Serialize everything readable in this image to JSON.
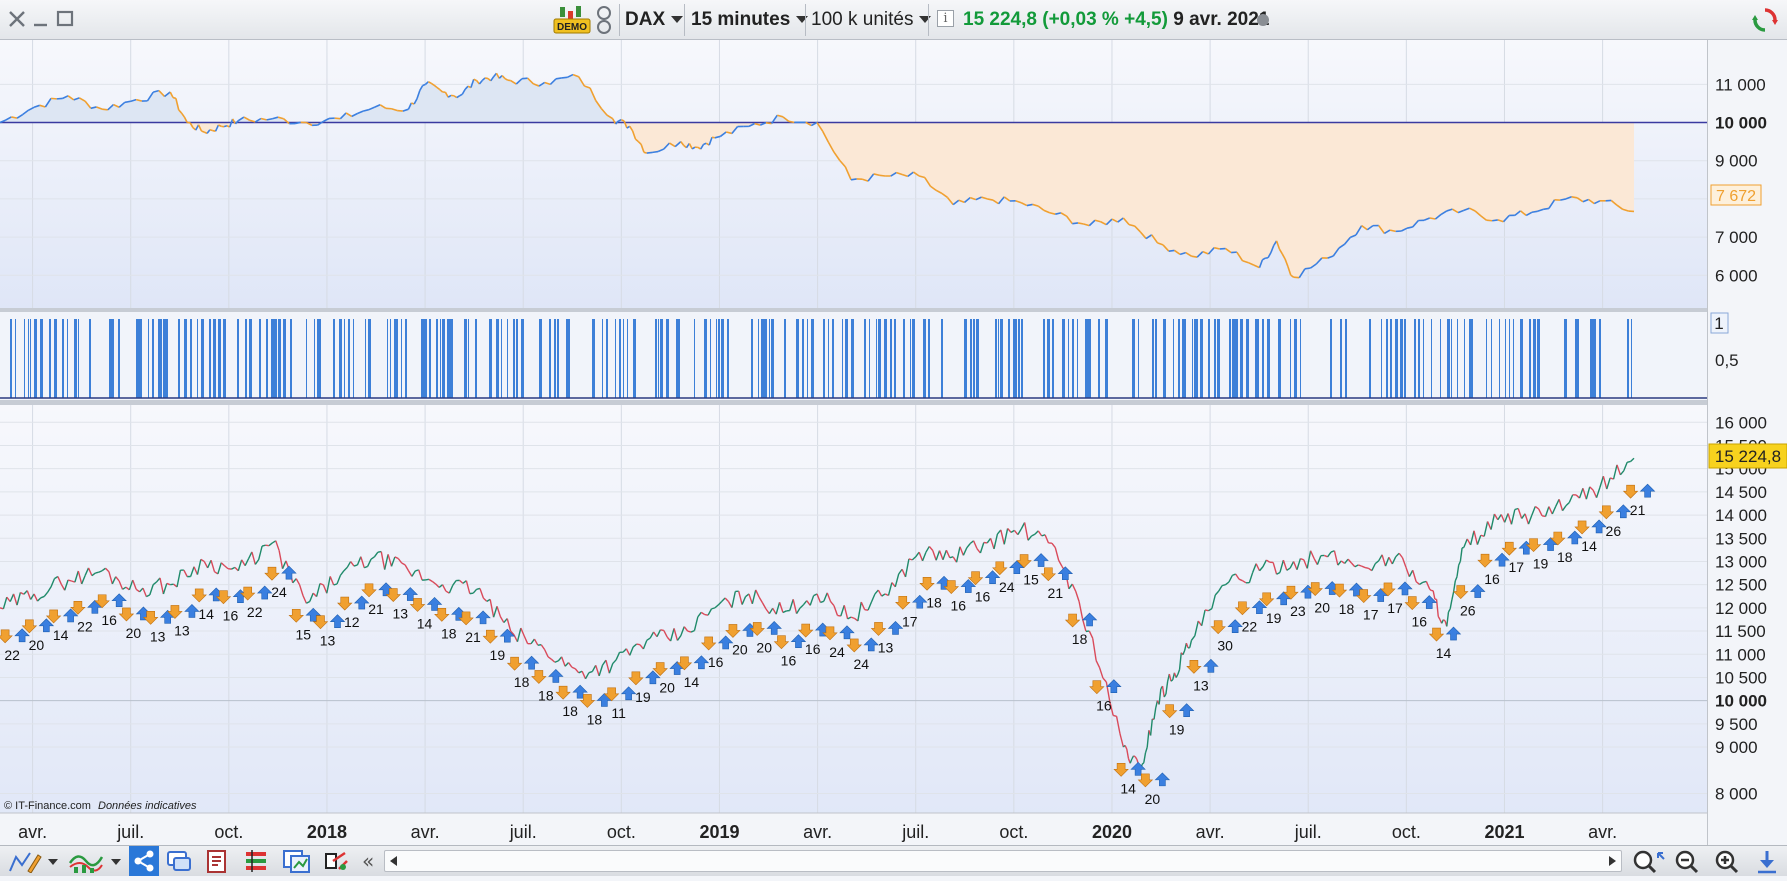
{
  "window": {
    "close_icon": "close-icon",
    "minimize_icon": "minimize-icon",
    "maximize_icon": "maximize-icon"
  },
  "toolbar": {
    "demo_badge": "DEMO",
    "instrument": "DAX",
    "timeframe": "15 minutes",
    "units": "100 k unités",
    "info_icon": "info-icon",
    "quote": "15 224,8 (+0,03 % +4,5)",
    "date": "9 avr. 2021",
    "refresh_icon": "refresh-icon"
  },
  "chart_data": [
    {
      "type": "line",
      "panel": "relative-performance",
      "y_ticks": [
        "11 000",
        "10 000",
        "9 000",
        "8 000",
        "7 000",
        "6 000"
      ],
      "ylim": [
        5300,
        11900
      ],
      "reference_level": 10000,
      "reference_label": "10 000",
      "last_value_label": "7 672",
      "fill_above": "#dde6f3",
      "fill_below": "#fbe8d6",
      "line_up_color": "#3b7fe0",
      "line_down_color": "#f0a030",
      "x": [
        0,
        2,
        4,
        6,
        8,
        10,
        11,
        12,
        13,
        14,
        16,
        18,
        20,
        22,
        24,
        25,
        26,
        27,
        28,
        29,
        30,
        32,
        34,
        36,
        37,
        38,
        40,
        41,
        42,
        44,
        46,
        48,
        50,
        52,
        54,
        56,
        58,
        60,
        62,
        64,
        66,
        68,
        70,
        72,
        74,
        75,
        76,
        78,
        80,
        82,
        84,
        86,
        88,
        90,
        92,
        94,
        96
      ],
      "values": [
        10000,
        10400,
        10700,
        10350,
        10600,
        10800,
        10000,
        9750,
        9900,
        10050,
        10100,
        10000,
        10100,
        10400,
        10350,
        11000,
        10800,
        10700,
        11100,
        11200,
        11100,
        11050,
        11200,
        10100,
        9900,
        9200,
        9500,
        9350,
        9600,
        9900,
        10150,
        10000,
        8500,
        8600,
        8600,
        7850,
        8000,
        7900,
        7600,
        7300,
        7500,
        6850,
        6500,
        6700,
        6200,
        6900,
        5950,
        6450,
        7300,
        7150,
        7500,
        7700,
        7450,
        7650,
        8000,
        7950,
        7672
      ]
    },
    {
      "type": "bar",
      "panel": "signal-bars",
      "y_ticks": [
        "0,5"
      ],
      "value_label": "1",
      "color": "#3d80d8"
    },
    {
      "type": "line",
      "panel": "price",
      "title": "DAX",
      "y_ticks": [
        "16 000",
        "15 500",
        "15 000",
        "14 500",
        "14 000",
        "13 500",
        "13 000",
        "12 500",
        "12 000",
        "11 500",
        "11 000",
        "10 500",
        "10 000",
        "9 500",
        "9 000",
        "8 000"
      ],
      "ylim": [
        7600,
        16200
      ],
      "last_value_label": "15 224,8",
      "x_ticks": [
        "avr.",
        "juil.",
        "oct.",
        "2018",
        "avr.",
        "juil.",
        "oct.",
        "2019",
        "avr.",
        "juil.",
        "oct.",
        "2020",
        "avr.",
        "juil.",
        "oct.",
        "2021",
        "avr."
      ],
      "x": [
        0,
        2,
        4,
        6,
        8,
        10,
        12,
        14,
        16,
        18,
        20,
        22,
        24,
        26,
        28,
        30,
        32,
        34,
        36,
        38,
        40,
        42,
        44,
        46,
        48,
        50,
        52,
        54,
        56,
        58,
        60,
        62,
        64,
        66,
        67,
        68,
        69,
        70,
        72,
        74,
        76,
        78,
        80,
        82,
        84,
        85,
        86,
        88,
        90,
        92,
        94,
        96
      ],
      "values": [
        12000,
        12300,
        12600,
        12800,
        12400,
        12500,
        13000,
        12800,
        13400,
        12100,
        12700,
        13100,
        12800,
        12500,
        12400,
        11500,
        11100,
        10600,
        10800,
        11300,
        11400,
        12000,
        12300,
        11900,
        12300,
        11800,
        12300,
        13200,
        13100,
        13400,
        13700,
        13300,
        11500,
        9000,
        8500,
        10000,
        10600,
        11300,
        12500,
        12800,
        13000,
        13100,
        12900,
        13100,
        12400,
        11600,
        13300,
        13900,
        14000,
        14200,
        14600,
        15224.8
      ],
      "signal_labels": [
        "22",
        "20",
        "14",
        "22",
        "16",
        "20",
        "13",
        "13",
        "14",
        "16",
        "22",
        "24",
        "15",
        "13",
        "12",
        "21",
        "13",
        "14",
        "18",
        "21",
        "19",
        "18",
        "18",
        "18",
        "18",
        "11",
        "19",
        "20",
        "14",
        "16",
        "20",
        "20",
        "16",
        "16",
        "24",
        "24",
        "13",
        "17",
        "18",
        "16",
        "16",
        "24",
        "15",
        "21",
        "18",
        "16",
        "14",
        "20",
        "19",
        "13",
        "30",
        "22",
        "19",
        "23",
        "20",
        "18",
        "17",
        "17",
        "16",
        "14",
        "26",
        "16",
        "17",
        "19",
        "18",
        "14",
        "26",
        "21"
      ]
    }
  ],
  "watermark": {
    "copyright": "© IT-Finance.com",
    "note": "Données indicatives"
  },
  "bottom_toolbar": {
    "icons": [
      "draw-tool-icon",
      "indicator-icon",
      "share-icon",
      "chat-icon",
      "order-ticket-icon",
      "order-list-icon",
      "window-icon",
      "tools-icon",
      "collapse-icon"
    ],
    "scroll_left_icon": "scroll-left-icon",
    "scroll_right_icon": "scroll-right-icon",
    "zoom_icons": [
      "zoom-fit-icon",
      "zoom-out-icon",
      "zoom-in-icon",
      "download-icon"
    ]
  }
}
